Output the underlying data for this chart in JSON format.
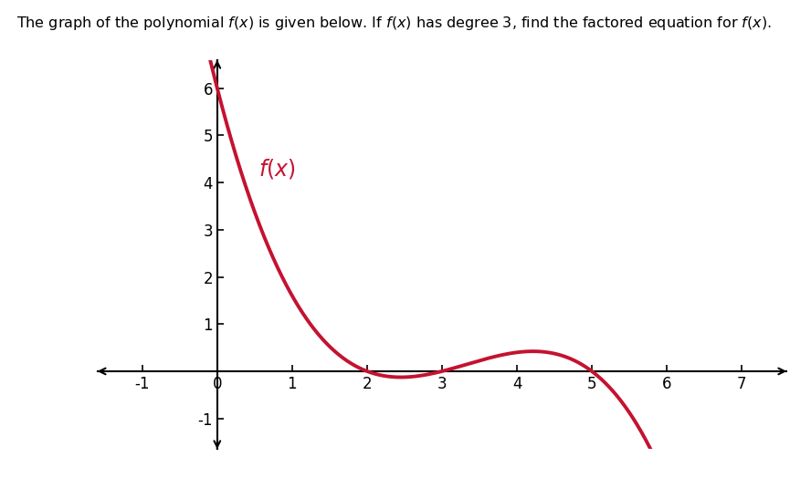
{
  "title": "The graph of the polynomial $f(x)$ is given below. If $f(x)$ has degree 3, find the factored equation for $f(x)$.",
  "curve_color": "#C41230",
  "label_color": "#C41230",
  "label_text": "$f(x)$",
  "background_color": "#ffffff",
  "xlim": [
    -1.6,
    7.6
  ],
  "ylim": [
    -1.65,
    6.6
  ],
  "xticks": [
    -1,
    0,
    1,
    2,
    3,
    4,
    5,
    6,
    7
  ],
  "yticks": [
    -1,
    1,
    2,
    3,
    4,
    5
  ],
  "ytick_6_label": "6",
  "scale": -0.2,
  "r1": 2,
  "r2": 3,
  "r3": 5,
  "line_width": 2.8,
  "figsize": [
    8.88,
    5.47
  ],
  "dpi": 100
}
